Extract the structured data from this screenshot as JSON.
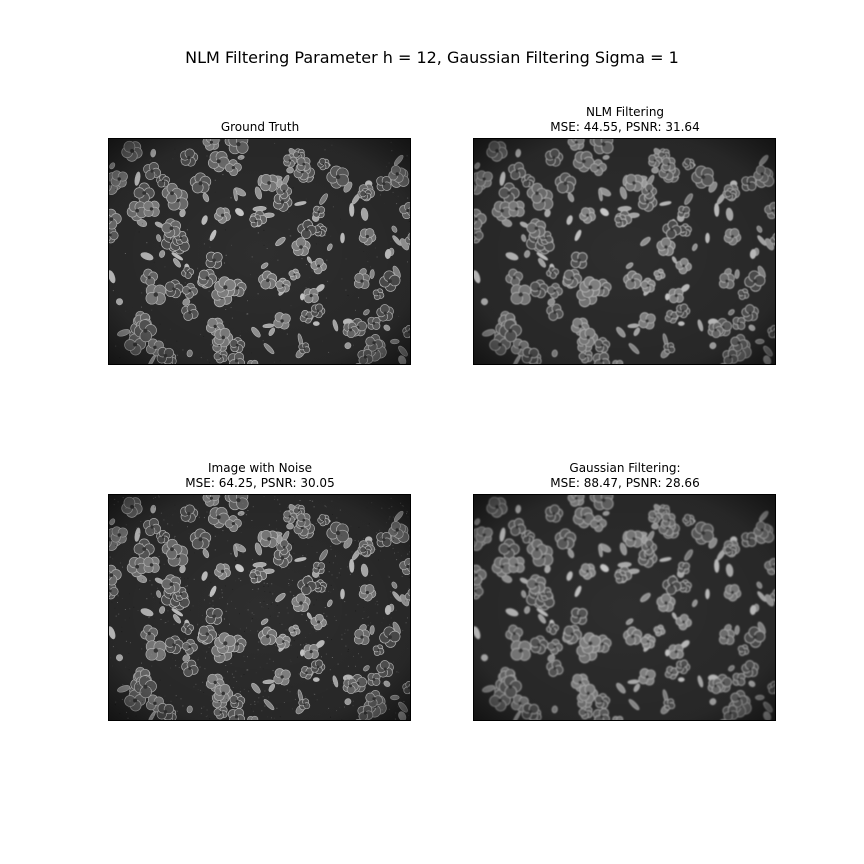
{
  "figure": {
    "suptitle": "NLM Filtering Parameter h = 12, Gaussian Filtering Sigma = 1"
  },
  "panels": [
    {
      "line1": "Ground Truth",
      "line2": ""
    },
    {
      "line1": "NLM Filtering",
      "line2": "MSE: 44.55, PSNR: 31.64"
    },
    {
      "line1": "Image with Noise",
      "line2": "MSE: 64.25, PSNR: 30.05"
    },
    {
      "line1": "Gaussian Filtering:",
      "line2": "MSE: 88.47, PSNR: 28.66"
    }
  ],
  "colors": {
    "background": "#ffffff",
    "image_dark": "#2e2e2e",
    "flower_fill": "#6a6a6a",
    "flower_edge": "#c8c8c8",
    "leaf_fill": "#8a8a8a"
  }
}
